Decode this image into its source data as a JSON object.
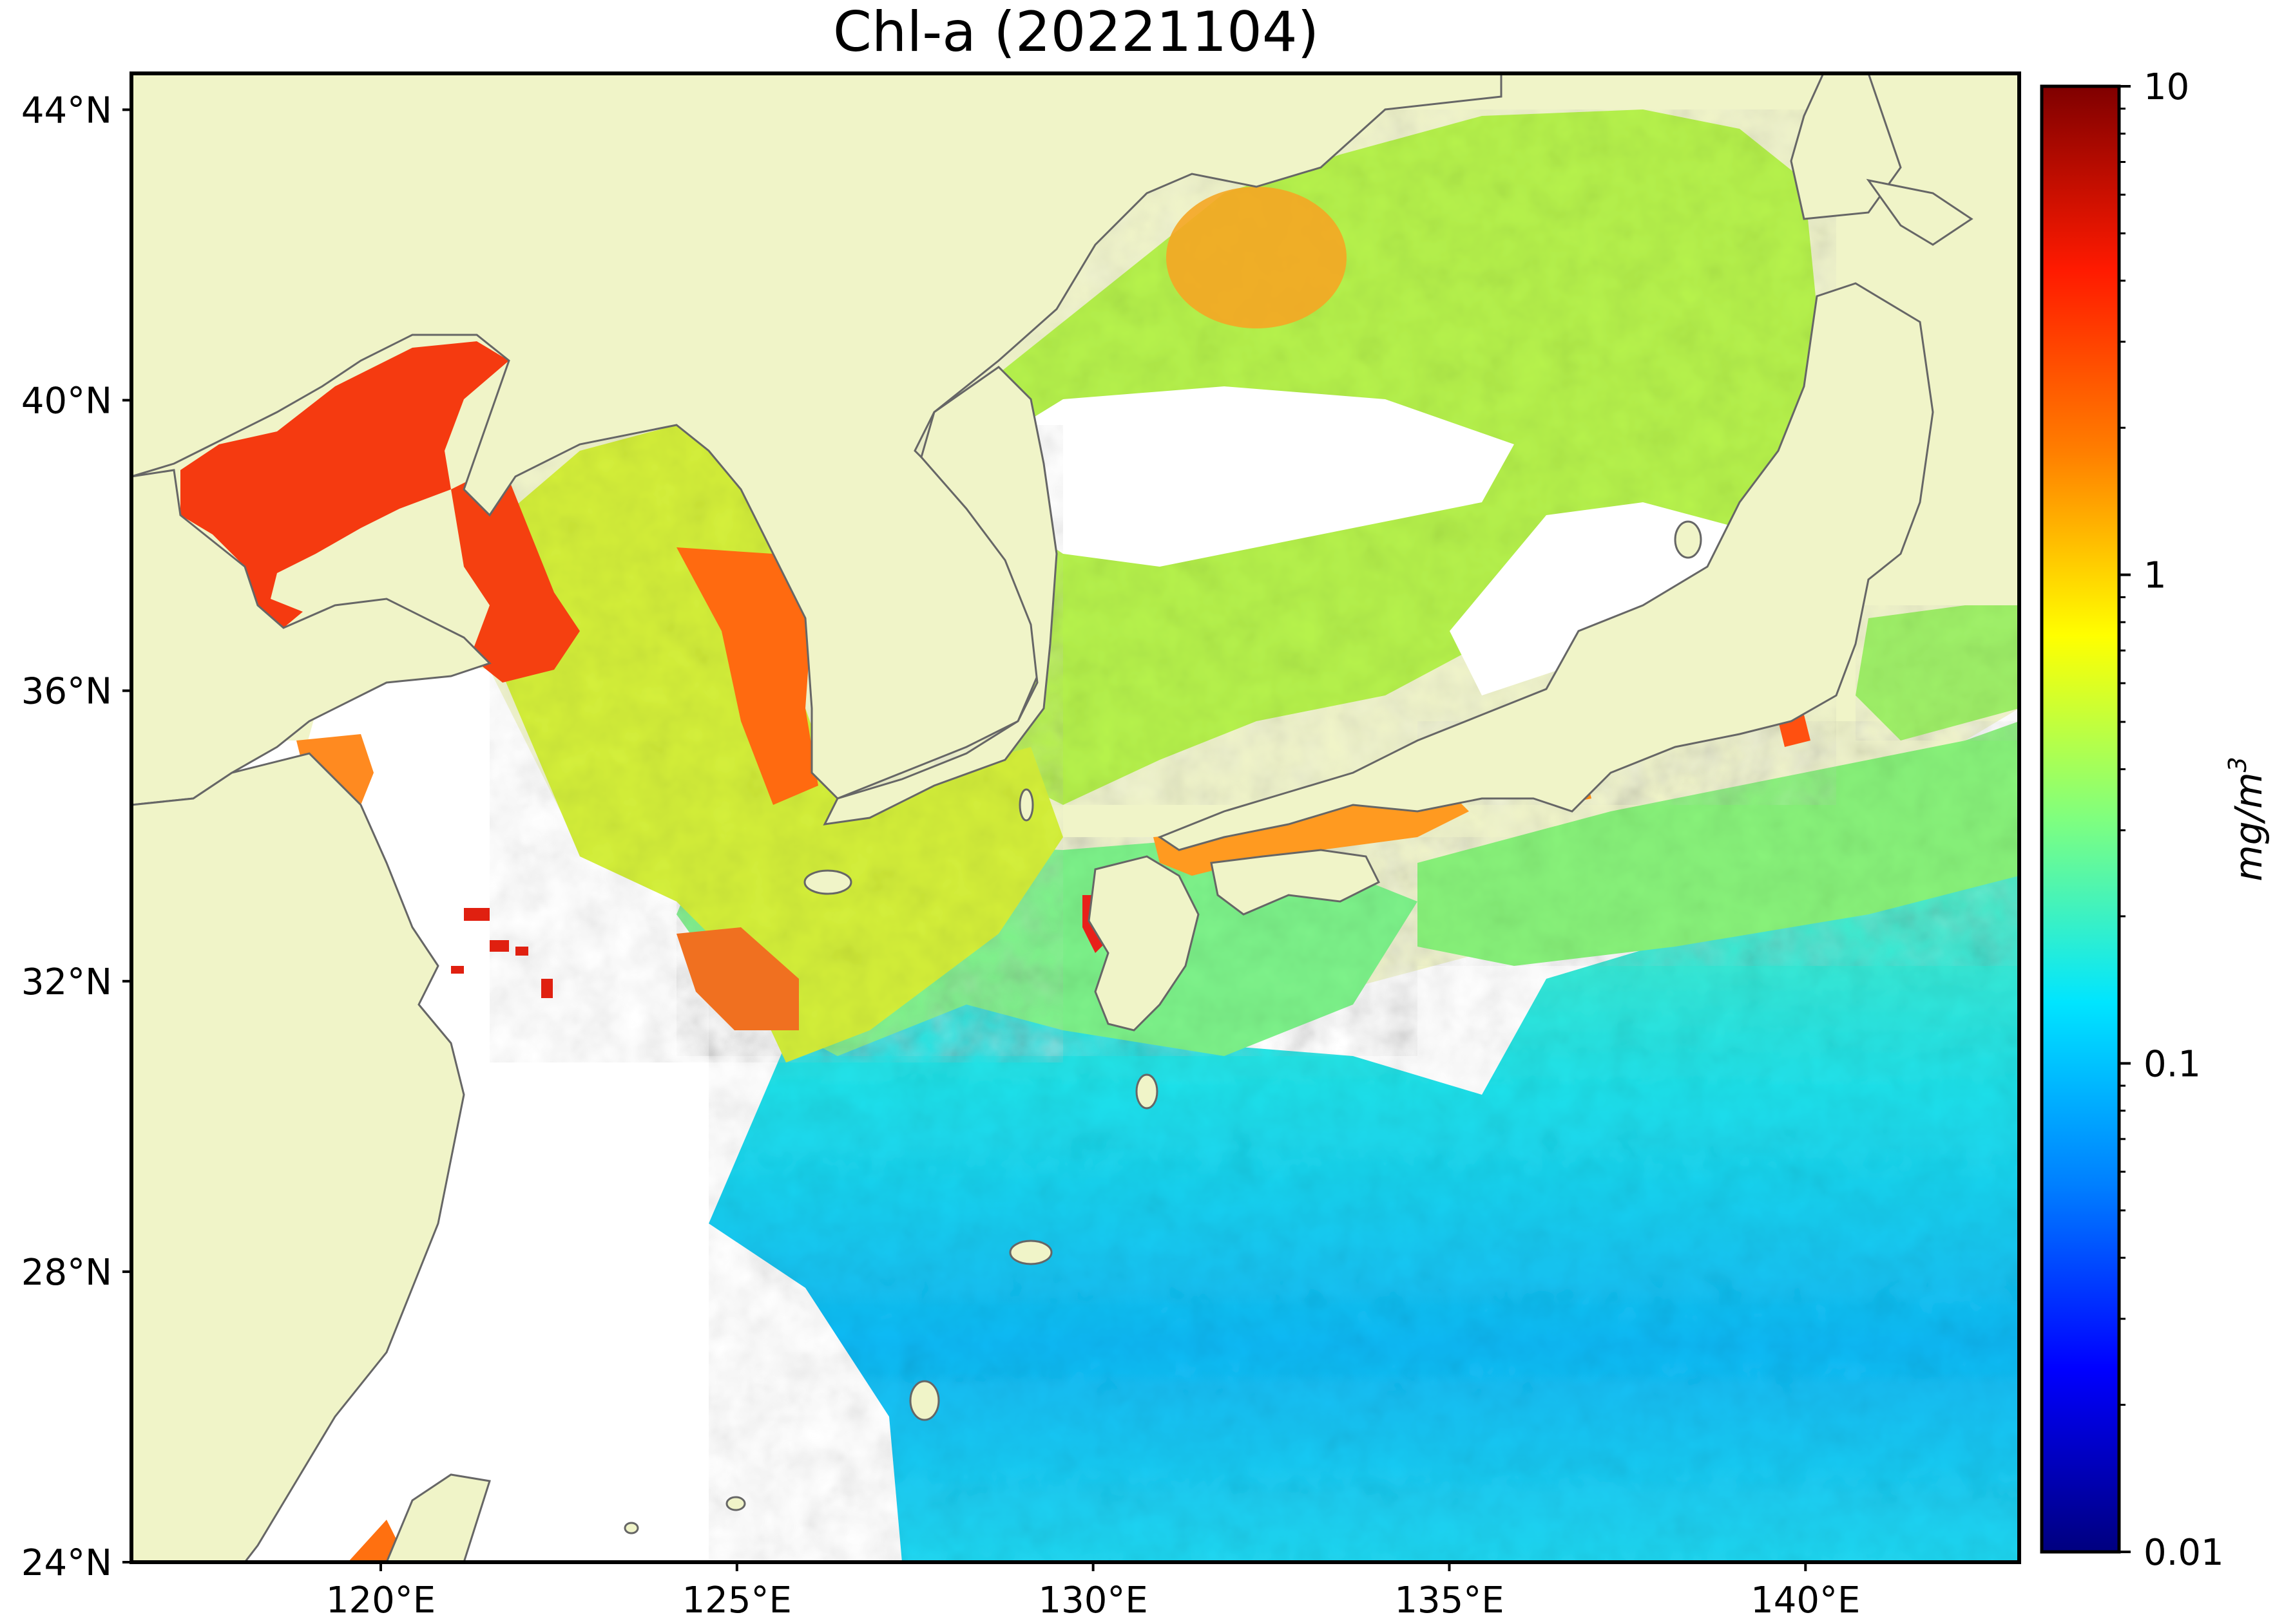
{
  "title": "Chl-a (20221104)",
  "map": {
    "land_color": "#f0f4c8",
    "coast_color": "#666666",
    "no_data_color": "#ffffff",
    "lon_range": [
      116.5,
      143.0
    ],
    "lat_range": [
      24.0,
      44.5
    ],
    "lon_ticks": [
      {
        "value": 120,
        "label": "120°E"
      },
      {
        "value": 125,
        "label": "125°E"
      },
      {
        "value": 130,
        "label": "130°E"
      },
      {
        "value": 135,
        "label": "135°E"
      },
      {
        "value": 140,
        "label": "140°E"
      }
    ],
    "lat_ticks": [
      {
        "value": 44,
        "label": "44°N"
      },
      {
        "value": 40,
        "label": "40°N"
      },
      {
        "value": 36,
        "label": "36°N"
      },
      {
        "value": 32,
        "label": "32°N"
      },
      {
        "value": 28,
        "label": "28°N"
      },
      {
        "value": 24,
        "label": "24°N"
      }
    ]
  },
  "colorbar": {
    "scale": "log",
    "min": 0.01,
    "max": 10,
    "ticks": [
      {
        "value": 10,
        "label": "10"
      },
      {
        "value": 1,
        "label": "1"
      },
      {
        "value": 0.1,
        "label": "0.1"
      },
      {
        "value": 0.01,
        "label": "0.01"
      }
    ],
    "unit_base": "mg/m",
    "unit_exp": "3",
    "colormap": [
      "#00007f",
      "#0000ff",
      "#007fff",
      "#00e5ff",
      "#7fff7f",
      "#ffff00",
      "#ff7f00",
      "#ff1a00",
      "#7f0000"
    ]
  }
}
